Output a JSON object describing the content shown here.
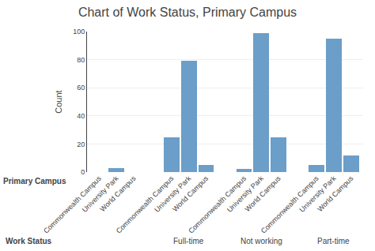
{
  "chart_data": {
    "type": "bar",
    "title": "Chart of Work Status, Primary Campus",
    "ylabel": "Count",
    "xlabel": "Primary Campus",
    "group_label": "Work Status",
    "groups": [
      null,
      "Full-time",
      "Not working",
      "Part-time"
    ],
    "categories": [
      "Commonwealth Campus",
      "University Park",
      "World Campus"
    ],
    "values": [
      [
        0,
        3,
        0
      ],
      [
        25,
        79,
        5
      ],
      [
        2,
        99,
        25
      ],
      [
        5,
        95,
        12
      ]
    ],
    "color": "#6b9ec8",
    "ylim": [
      0,
      100
    ],
    "yticks": [
      0,
      20,
      40,
      60,
      80,
      100
    ],
    "grid": true
  }
}
